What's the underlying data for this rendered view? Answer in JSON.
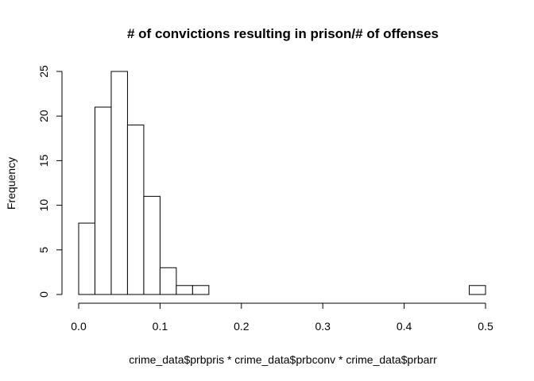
{
  "chart_data": {
    "type": "bar",
    "title": "# of convictions resulting in prison/# of offenses",
    "xlabel": "crime_data$prbpris * crime_data$prbconv * crime_data$prbarr",
    "ylabel": "Frequency",
    "bin_edges": [
      0,
      0.02,
      0.04,
      0.06,
      0.08,
      0.1,
      0.12,
      0.14,
      0.16,
      0.18,
      0.2,
      0.22,
      0.24,
      0.26,
      0.28,
      0.3,
      0.32,
      0.34,
      0.36,
      0.38,
      0.4,
      0.42,
      0.44,
      0.46,
      0.48,
      0.5
    ],
    "values": [
      8,
      21,
      25,
      19,
      11,
      3,
      1,
      1,
      0,
      0,
      0,
      0,
      0,
      0,
      0,
      0,
      0,
      0,
      0,
      0,
      0,
      0,
      0,
      0,
      1
    ],
    "xlim": [
      0,
      0.5
    ],
    "ylim": [
      0,
      25
    ],
    "x_ticks": [
      "0.0",
      "0.1",
      "0.2",
      "0.3",
      "0.4",
      "0.5"
    ],
    "y_ticks": [
      "0",
      "5",
      "10",
      "15",
      "20",
      "25"
    ],
    "grid": false,
    "colors": {
      "bar_fill": "#ffffff",
      "bar_stroke": "#000000"
    }
  }
}
